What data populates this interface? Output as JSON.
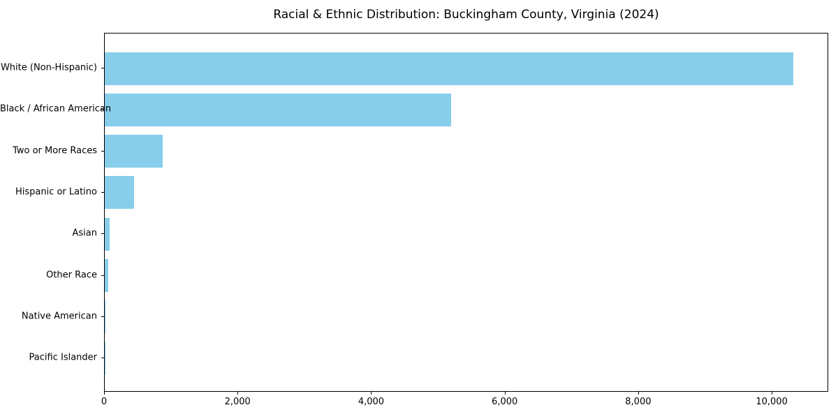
{
  "figure": {
    "background": "#ffffff",
    "axis_color": "#000000",
    "text_color": "#000000"
  },
  "chart_data": {
    "type": "bar",
    "orientation": "horizontal",
    "title": "Racial & Ethnic Distribution: Buckingham County, Virginia (2024)",
    "categories": [
      "White (Non-Hispanic)",
      "Black / African American",
      "Two or More Races",
      "Hispanic or Latino",
      "Asian",
      "Other Race",
      "Native American",
      "Pacific Islander"
    ],
    "values": [
      10330,
      5200,
      870,
      440,
      70,
      50,
      15,
      5
    ],
    "xlabel": "",
    "ylabel": "",
    "xlim": [
      0,
      10846
    ],
    "x_ticks": [
      0,
      2000,
      4000,
      6000,
      8000,
      10000
    ],
    "x_tick_labels": [
      "0",
      "2,000",
      "4,000",
      "6,000",
      "8,000",
      "10,000"
    ],
    "grid": false,
    "legend": null,
    "bar_color": "#87CEEB"
  }
}
